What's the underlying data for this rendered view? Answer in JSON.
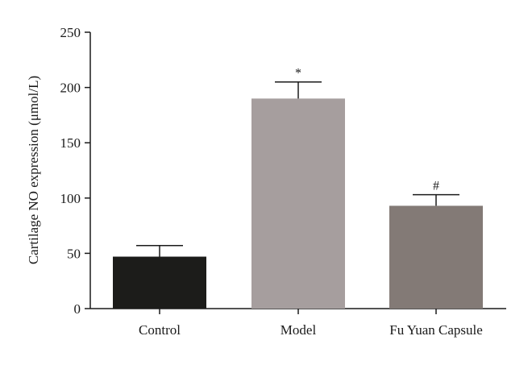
{
  "chart_data": {
    "type": "bar",
    "ylabel": "Cartilage NO expression (μmol/L)",
    "ylim": [
      0,
      250
    ],
    "yticks": [
      0,
      50,
      100,
      150,
      200,
      250
    ],
    "categories": [
      "Control",
      "Model",
      "Fu Yuan Capsule"
    ],
    "values": [
      47,
      190,
      93
    ],
    "errors": [
      10,
      15,
      10
    ],
    "annotations": [
      "",
      "*",
      "#"
    ],
    "colors": [
      "#1c1c1a",
      "#a69e9e",
      "#837a76"
    ],
    "grid": false
  }
}
